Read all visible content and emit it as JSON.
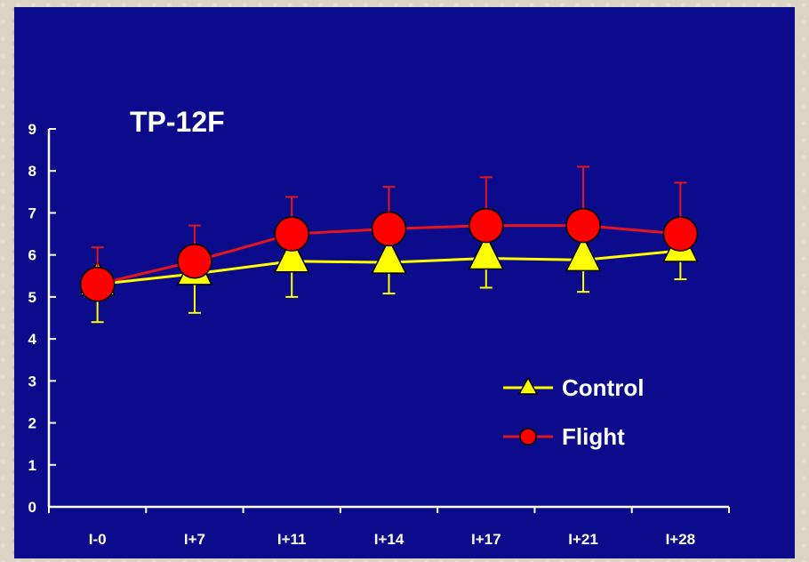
{
  "colors": {
    "background": "#0b0b8c",
    "axis": "#ffffff",
    "control": "#ffff00",
    "flight": "#ff0000",
    "flight_line": "#e8141c",
    "outline": "#000000"
  },
  "chart_data": {
    "type": "line",
    "title": "TP-12F",
    "categories": [
      "I-0",
      "I+7",
      "I+11",
      "I+14",
      "I+17",
      "I+21",
      "I+28"
    ],
    "ylim": [
      0,
      9
    ],
    "yticks": [
      0,
      1,
      2,
      3,
      4,
      5,
      6,
      7,
      8,
      9
    ],
    "xlabel": "",
    "ylabel": "",
    "grid": false,
    "legend_position": "lower-right",
    "series": [
      {
        "name": "Control",
        "marker": "triangle",
        "values": [
          5.3,
          5.55,
          5.85,
          5.82,
          5.92,
          5.88,
          6.1
        ],
        "error_low": [
          4.4,
          4.62,
          5.0,
          5.08,
          5.22,
          5.12,
          5.42
        ]
      },
      {
        "name": "Flight",
        "marker": "circle",
        "values": [
          5.3,
          5.85,
          6.5,
          6.62,
          6.7,
          6.7,
          6.5
        ],
        "error_high": [
          6.18,
          6.7,
          7.38,
          7.62,
          7.85,
          8.1,
          7.72
        ]
      }
    ]
  }
}
